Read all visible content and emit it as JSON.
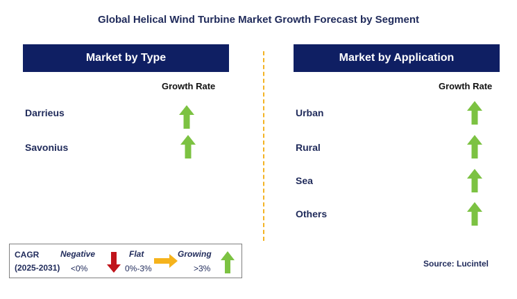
{
  "title": "Global Helical Wind Turbine Market Growth Forecast by Segment",
  "left_panel": {
    "header": "Market by Type",
    "growth_label": "Growth Rate",
    "items": [
      {
        "label": "Darrieus",
        "trend": "growing"
      },
      {
        "label": "Savonius",
        "trend": "growing"
      }
    ]
  },
  "right_panel": {
    "header": "Market by Application",
    "growth_label": "Growth Rate",
    "items": [
      {
        "label": "Urban",
        "trend": "growing"
      },
      {
        "label": "Rural",
        "trend": "growing"
      },
      {
        "label": "Sea",
        "trend": "growing"
      },
      {
        "label": "Others",
        "trend": "growing"
      }
    ]
  },
  "legend": {
    "cagr_label": "CAGR",
    "period": "(2025-2031)",
    "negative_label": "Negative",
    "negative_value": "<0%",
    "flat_label": "Flat",
    "flat_value": "0%-3%",
    "growing_label": "Growing",
    "growing_value": ">3%"
  },
  "source": "Source: Lucintel",
  "colors": {
    "header_bg": "#0f1f63",
    "growing": "#7cc242",
    "negative": "#c0141b",
    "flat": "#f5b31c",
    "divider": "#f3b323"
  }
}
